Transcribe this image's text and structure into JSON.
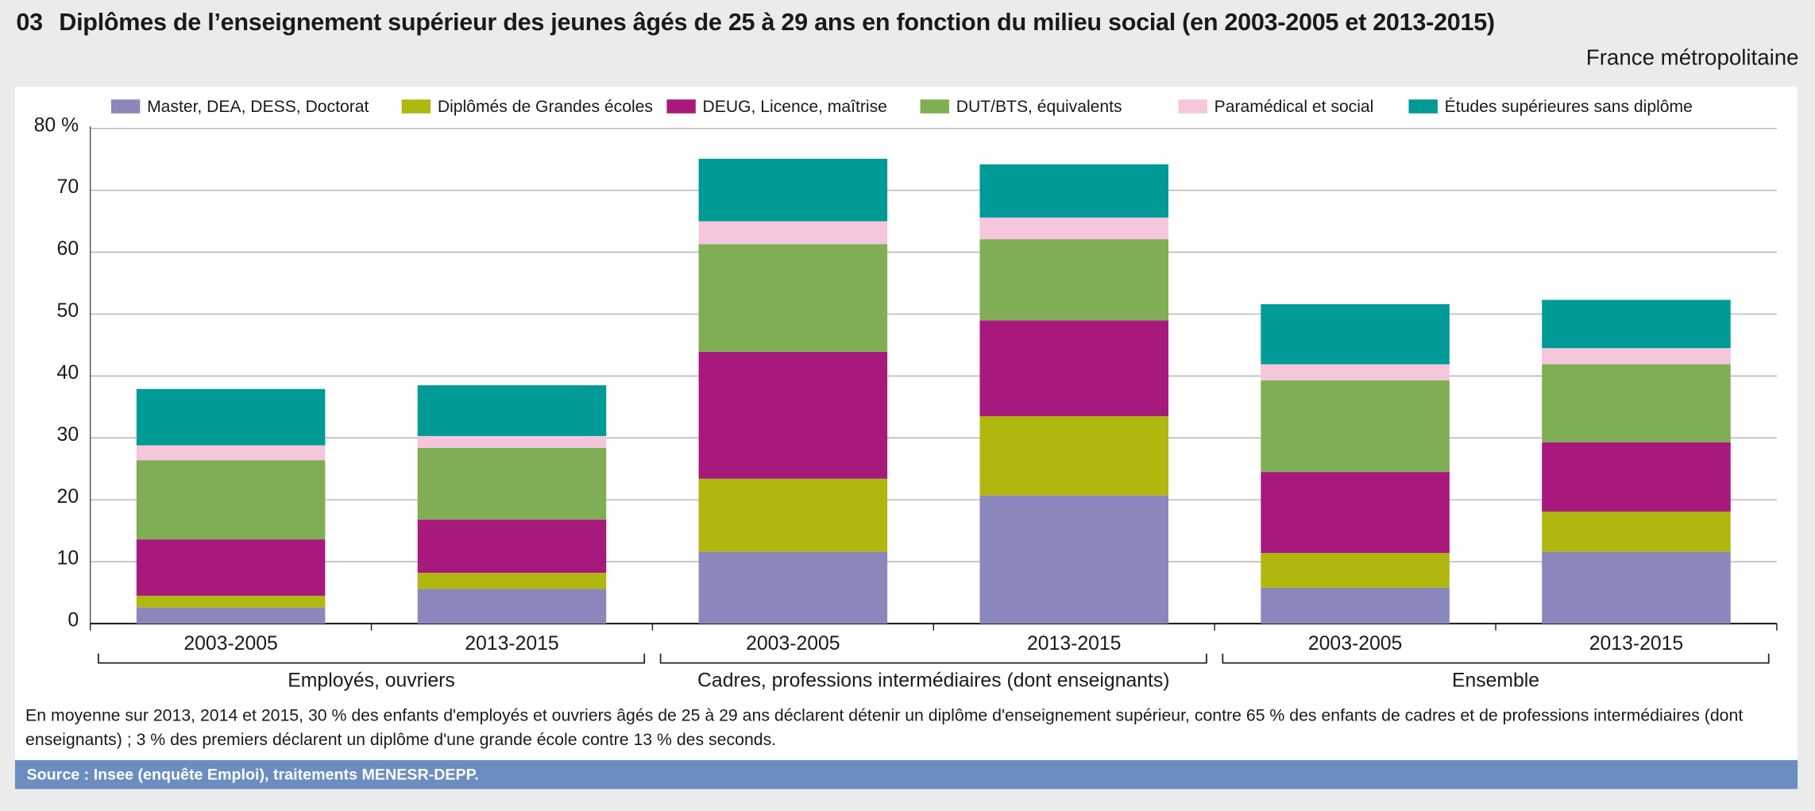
{
  "chart_data": {
    "type": "stacked-bar",
    "number": "03",
    "title": "Diplômes de l’enseignement supérieur des jeunes âgés de 25 à 29 ans en fonction du milieu social (en 2003-2005 et 2013-2015)",
    "subtitle": "France métropolitaine",
    "categories": [
      "2003-2005",
      "2013-2015",
      "2003-2005",
      "2013-2015",
      "2003-2005",
      "2013-2015"
    ],
    "groups": [
      "Employés, ouvriers",
      "Cadres, professions intermédiaires (dont enseignants)",
      "Ensemble"
    ],
    "series": [
      {
        "name": "Master, DEA, DESS, Doctorat",
        "color": "#8b87bd",
        "values": [
          2.6,
          5.6,
          11.6,
          20.7,
          5.8,
          11.6
        ]
      },
      {
        "name": "Diplômés de Grandes écoles",
        "color": "#b0b70f",
        "values": [
          1.9,
          2.6,
          11.8,
          12.8,
          5.6,
          6.5
        ]
      },
      {
        "name": "DEUG, Licence, maîtrise",
        "color": "#a8197e",
        "values": [
          9.1,
          8.6,
          20.5,
          15.5,
          13.1,
          11.2
        ]
      },
      {
        "name": "DUT/BTS, équivalents",
        "color": "#7fae55",
        "values": [
          12.8,
          11.6,
          17.4,
          13.1,
          14.8,
          12.6
        ]
      },
      {
        "name": "Paramédical et social",
        "color": "#f5c6dc",
        "values": [
          2.4,
          1.9,
          3.7,
          3.5,
          2.6,
          2.6
        ]
      },
      {
        "name": "Études supérieures sans diplôme",
        "color": "#009a97",
        "values": [
          9.1,
          8.2,
          10.1,
          8.6,
          9.7,
          7.8
        ]
      }
    ],
    "ylim": [
      0,
      80
    ],
    "yticks": [
      0,
      10,
      20,
      30,
      40,
      50,
      60,
      70,
      {
        "value": 80,
        "label": "80 %"
      }
    ],
    "grid": true,
    "legend": "top",
    "note": "En moyenne sur 2013, 2014 et 2015, 30 % des enfants d'employés et ouvriers âgés de 25 à 29 ans déclarent détenir un diplôme d'enseignement supérieur, contre 65 % des enfants de cadres et de professions intermédiaires (dont enseignants) ; 3 % des premiers déclarent un diplôme d'une grande école contre 13 % des seconds.",
    "source": "Source : Insee (enquête Emploi), traitements MENESR-DEPP."
  }
}
